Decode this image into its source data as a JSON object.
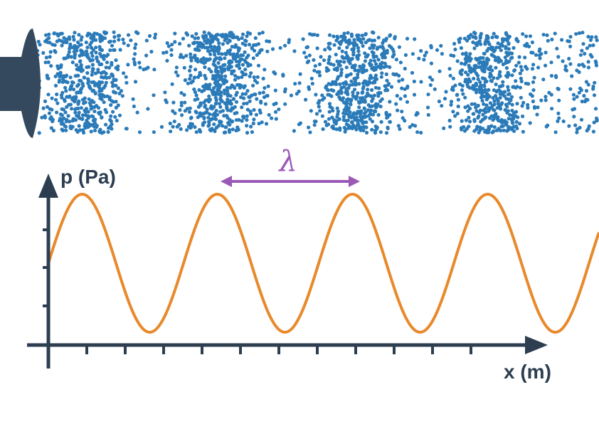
{
  "labels": {
    "y_axis": "p (Pa)",
    "x_axis": "x (m)",
    "wavelength": "λ"
  }
}
